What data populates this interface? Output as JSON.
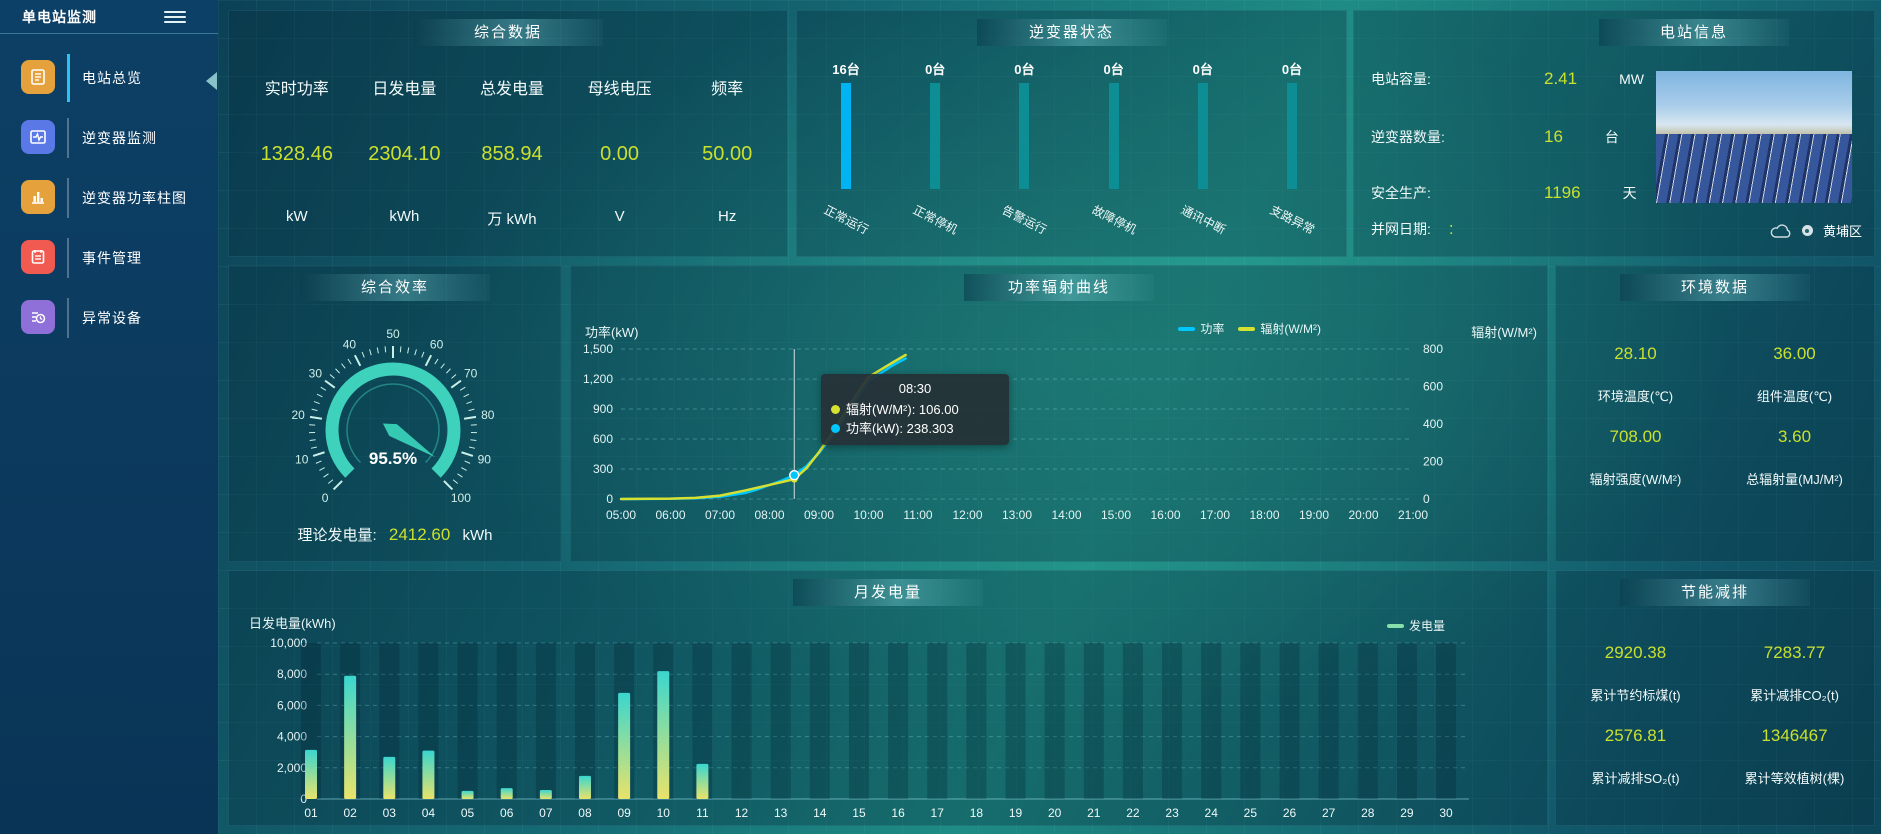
{
  "colors": {
    "accent_yellow": "#c9e02e",
    "bar_blue": "#00b3f2",
    "bar_teal": "#0d8e94",
    "line_cyan": "#00c6ff",
    "line_yellow": "#d6e030",
    "gauge_teal": "#3ed2bd",
    "legend_green": "#85e0aa"
  },
  "sidebar": {
    "title": "单电站监测",
    "items": [
      {
        "label": "电站总览",
        "icon": "overview-icon",
        "color": "#e5a23c",
        "active": true
      },
      {
        "label": "逆变器监测",
        "icon": "inverter-monitor-icon",
        "color": "#5a78e6",
        "active": false
      },
      {
        "label": "逆变器功率柱图",
        "icon": "power-bars-icon",
        "color": "#e5a23c",
        "active": false
      },
      {
        "label": "事件管理",
        "icon": "event-manage-icon",
        "color": "#f05a50",
        "active": false
      },
      {
        "label": "异常设备",
        "icon": "abnormal-device-icon",
        "color": "#8f6fd8",
        "active": false
      }
    ]
  },
  "panels": {
    "summary": {
      "title": "综合数据",
      "metrics": [
        {
          "label": "实时功率",
          "value": "1328.46",
          "unit": "kW"
        },
        {
          "label": "日发电量",
          "value": "2304.10",
          "unit": "kWh"
        },
        {
          "label": "总发电量",
          "value": "858.94",
          "unit": "万 kWh"
        },
        {
          "label": "母线电压",
          "value": "0.00",
          "unit": "V"
        },
        {
          "label": "频率",
          "value": "50.00",
          "unit": "Hz"
        }
      ]
    },
    "inverter": {
      "title": "逆变器状态"
    },
    "station": {
      "title": "电站信息",
      "rows": [
        {
          "label": "电站容量:",
          "value": "2.41",
          "unit": "MW"
        },
        {
          "label": "逆变器数量:",
          "value": "16",
          "unit": "台"
        },
        {
          "label": "安全生产:",
          "value": "1196",
          "unit": "天"
        },
        {
          "label": "并网日期:",
          "value": ":",
          "unit": ""
        }
      ],
      "location": "黄埔区"
    },
    "efficiency": {
      "title": "综合效率",
      "theory_label": "理论发电量:",
      "theory_value": "2412.60",
      "theory_unit": "kWh"
    },
    "power_curve": {
      "title": "功率辐射曲线",
      "tooltip": {
        "time": "08:30",
        "rows": [
          {
            "label": "辐射(W/M²)",
            "value": "106.00",
            "color": "#d6e030"
          },
          {
            "label": "功率(kW)",
            "value": "238.303",
            "color": "#00c6ff"
          }
        ]
      }
    },
    "environment": {
      "title": "环境数据",
      "items": [
        {
          "value": "28.10",
          "label": "环境温度(℃)"
        },
        {
          "value": "36.00",
          "label": "组件温度(℃)"
        },
        {
          "value": "708.00",
          "label": "辐射强度(W/M²)"
        },
        {
          "value": "3.60",
          "label": "总辐射量(MJ/M²)"
        }
      ]
    },
    "monthly": {
      "title": "月发电量"
    },
    "saving": {
      "title": "节能减排",
      "items": [
        {
          "value": "2920.38",
          "label": "累计节约标煤(t)"
        },
        {
          "value": "7283.77",
          "label": "累计减排CO₂(t)"
        },
        {
          "value": "2576.81",
          "label": "累计减排SO₂(t)"
        },
        {
          "value": "1346467",
          "label": "累计等效植树(棵)"
        }
      ]
    }
  },
  "chart_data": [
    {
      "id": "inverter_status",
      "type": "bar",
      "categories": [
        "正常运行",
        "正常停机",
        "告警运行",
        "故障停机",
        "通讯中断",
        "支路异常"
      ],
      "values": [
        16,
        0,
        0,
        0,
        0,
        0
      ],
      "unit": "台",
      "count_labels": [
        "16台",
        "0台",
        "0台",
        "0台",
        "0台",
        "0台"
      ],
      "bar_colors": [
        "#00b3f2",
        "#0d8e94",
        "#0d8e94",
        "#0d8e94",
        "#0d8e94",
        "#0d8e94"
      ]
    },
    {
      "id": "efficiency_gauge",
      "type": "gauge",
      "value": 95.5,
      "display": "95.5%",
      "min": 0,
      "max": 100,
      "tick_labels": [
        0,
        10,
        20,
        30,
        40,
        50,
        60,
        70,
        80,
        90,
        100
      ]
    },
    {
      "id": "power_radiation",
      "type": "line",
      "x_ticks": [
        "05:00",
        "06:00",
        "07:00",
        "08:00",
        "09:00",
        "10:00",
        "11:00",
        "12:00",
        "13:00",
        "14:00",
        "15:00",
        "16:00",
        "17:00",
        "18:00",
        "19:00",
        "20:00",
        "21:00"
      ],
      "x_range": [
        5,
        21
      ],
      "y_left": {
        "name": "功率(kW)",
        "ticks": [
          "0",
          "300",
          "600",
          "900",
          "1,200",
          "1,500"
        ],
        "max": 1500
      },
      "y_right": {
        "name": "辐射(W/M²)",
        "ticks": [
          "0",
          "200",
          "400",
          "600",
          "800"
        ],
        "max": 800
      },
      "legend": [
        {
          "name": "功率",
          "color": "#00c6ff"
        },
        {
          "name": "辐射(W/M²)",
          "color": "#d6e030"
        }
      ],
      "crosshair_x": 8.5,
      "marker": {
        "series": "功率",
        "x": 8.5,
        "y": 238.303
      },
      "series": [
        {
          "name": "功率",
          "color": "#00c6ff",
          "axis": "left",
          "points": [
            [
              5,
              0
            ],
            [
              5.5,
              1
            ],
            [
              6,
              3
            ],
            [
              6.5,
              8
            ],
            [
              7,
              22
            ],
            [
              7.5,
              60
            ],
            [
              7.75,
              95
            ],
            [
              8,
              140
            ],
            [
              8.25,
              185
            ],
            [
              8.5,
              238.3
            ],
            [
              8.75,
              330
            ],
            [
              9,
              460
            ],
            [
              9.25,
              620
            ],
            [
              9.5,
              800
            ],
            [
              9.75,
              1000
            ],
            [
              10,
              1180
            ],
            [
              10.5,
              1340
            ],
            [
              10.75,
              1405
            ]
          ]
        },
        {
          "name": "辐射(W/M²)",
          "color": "#d6e030",
          "axis": "right",
          "points": [
            [
              5,
              0
            ],
            [
              6,
              2
            ],
            [
              6.5,
              6
            ],
            [
              7,
              18
            ],
            [
              7.5,
              45
            ],
            [
              8,
              75
            ],
            [
              8.5,
              106
            ],
            [
              8.75,
              165
            ],
            [
              9,
              250
            ],
            [
              9.25,
              345
            ],
            [
              9.5,
              450
            ],
            [
              9.75,
              555
            ],
            [
              10,
              650
            ],
            [
              10.5,
              730
            ],
            [
              10.75,
              768
            ]
          ]
        }
      ]
    },
    {
      "id": "monthly_generation",
      "type": "bar",
      "ylabel": "日发电量(kWh)",
      "legend": "发电量",
      "categories": [
        "01",
        "02",
        "03",
        "04",
        "05",
        "06",
        "07",
        "08",
        "09",
        "10",
        "11",
        "12",
        "13",
        "14",
        "15",
        "16",
        "17",
        "18",
        "19",
        "20",
        "21",
        "22",
        "23",
        "24",
        "25",
        "26",
        "27",
        "28",
        "29",
        "30"
      ],
      "values": [
        3150,
        7900,
        2700,
        3100,
        520,
        700,
        580,
        1480,
        6800,
        8200,
        2250,
        0,
        0,
        0,
        0,
        0,
        0,
        0,
        0,
        0,
        0,
        0,
        0,
        0,
        0,
        0,
        0,
        0,
        0,
        0
      ],
      "y_ticks": [
        "0",
        "2,000",
        "4,000",
        "6,000",
        "8,000",
        "10,000"
      ],
      "ylim": [
        0,
        10000
      ],
      "bar_gradient": [
        "#3ad6cf",
        "#e9e36a"
      ]
    }
  ]
}
